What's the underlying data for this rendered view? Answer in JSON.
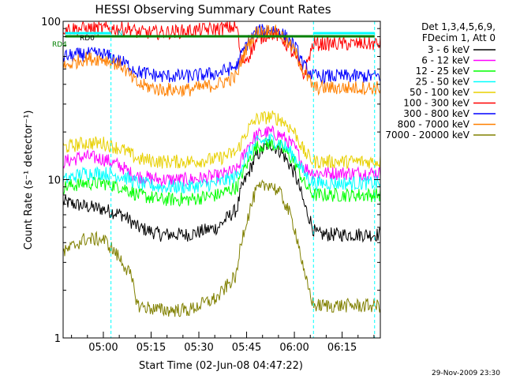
{
  "chart_data": {
    "type": "line",
    "title": "HESSI Observing Summary Count Rates",
    "xlabel": "Start Time (02-Jun-08 04:47:22)",
    "ylabel": "Count Rate (s⁻¹ detector⁻¹)",
    "yscale": "log",
    "ylim": [
      1,
      100
    ],
    "xlim": [
      "04:47:22",
      "06:27:00"
    ],
    "x_ticks": [
      "05:00",
      "05:15",
      "05:30",
      "05:45",
      "06:00",
      "06:15"
    ],
    "y_ticks": [
      "1",
      "10",
      "100"
    ],
    "legend_header": [
      "Det 1,3,4,5,6,9,",
      "FDecim 1, Att 0"
    ],
    "legend_position": "right",
    "timestamp": "29-Nov-2009 23:30",
    "flag_labels": {
      "rd0": "RD0",
      "n": "N",
      "rd4": "RD4"
    },
    "flag_colors": {
      "rd0": "#00ffff",
      "n": "#00ffff",
      "rd4": "#008000"
    },
    "x_hours": [
      4.8,
      4.9,
      5.0,
      5.1,
      5.14,
      5.18,
      5.3,
      5.45,
      5.6,
      5.7,
      5.72,
      5.76,
      5.8,
      5.87,
      5.93,
      6.0,
      6.05,
      6.1,
      6.12,
      6.16,
      6.25,
      6.35,
      6.42
    ],
    "series": [
      {
        "name": "3 - 6 keV",
        "color": "#000000",
        "values": [
          7.2,
          6.8,
          6.5,
          6.0,
          5.5,
          5.0,
          4.5,
          4.5,
          5.0,
          6.5,
          8.5,
          11,
          14,
          17,
          15,
          11,
          7,
          4.8,
          4.5,
          4.5,
          4.5,
          4.5,
          4.5
        ]
      },
      {
        "name": "6 - 12 keV",
        "color": "#ff00ff",
        "values": [
          13,
          14,
          13.5,
          12,
          11,
          10.5,
          10,
          10,
          10.5,
          11.5,
          13,
          16.5,
          19,
          20,
          19,
          16,
          12,
          11,
          11,
          11,
          11,
          11,
          11
        ]
      },
      {
        "name": "12 - 25 keV",
        "color": "#00ff00",
        "values": [
          9,
          9.5,
          9.5,
          9,
          8.5,
          8,
          7.5,
          7.5,
          8,
          9,
          10.5,
          13,
          16,
          17,
          16,
          13,
          9.5,
          8,
          8,
          8,
          8,
          8,
          8
        ]
      },
      {
        "name": "25 - 50 keV",
        "color": "#00ffff",
        "values": [
          10,
          11,
          11,
          10.5,
          10,
          9.5,
          9,
          9,
          9.5,
          10.5,
          12,
          14.5,
          17,
          18,
          17,
          14,
          11,
          9.5,
          9.5,
          9.5,
          9.5,
          9.5,
          9.5
        ]
      },
      {
        "name": "50 - 100 keV",
        "color": "#e8d000",
        "values": [
          16,
          17,
          17,
          15.5,
          14.5,
          13.5,
          13,
          13,
          13.5,
          15,
          17,
          21,
          24,
          25,
          24,
          20,
          15,
          13,
          13,
          13,
          13,
          13,
          13
        ]
      },
      {
        "name": "100 - 300 keV",
        "color": "#ff0000",
        "values": [
          90,
          90,
          90,
          90,
          90,
          85,
          85,
          87,
          90,
          92,
          55,
          60,
          75,
          85,
          80,
          60,
          45,
          72,
          72,
          72,
          72,
          72,
          72
        ]
      },
      {
        "name": "300 - 800 keV",
        "color": "#0000ff",
        "values": [
          60,
          62,
          62,
          55,
          52,
          48,
          45,
          45,
          47,
          52,
          60,
          75,
          85,
          90,
          85,
          70,
          52,
          45,
          45,
          45,
          45,
          45,
          45
        ]
      },
      {
        "name": "800 - 7000 keV",
        "color": "#ff8000",
        "values": [
          52,
          58,
          58,
          52,
          45,
          40,
          37,
          37,
          40,
          45,
          55,
          72,
          85,
          88,
          82,
          65,
          48,
          38,
          38,
          38,
          38,
          38,
          38
        ]
      },
      {
        "name": "7000 - 20000 keV",
        "color": "#808000",
        "values": [
          3.5,
          4.2,
          4.2,
          3.0,
          2.5,
          1.6,
          1.5,
          1.5,
          1.8,
          2.5,
          4,
          6,
          8.5,
          9.5,
          8,
          5,
          2.5,
          1.6,
          1.6,
          1.6,
          1.6,
          1.6,
          1.6
        ]
      }
    ],
    "flag_lines": {
      "rd4": [
        [
          4.8,
          5.18
        ],
        [
          5.18,
          6.1
        ],
        [
          6.1,
          6.42
        ]
      ],
      "rd0": [
        [
          4.8,
          5.04
        ],
        [
          6.1,
          6.42
        ]
      ]
    }
  }
}
